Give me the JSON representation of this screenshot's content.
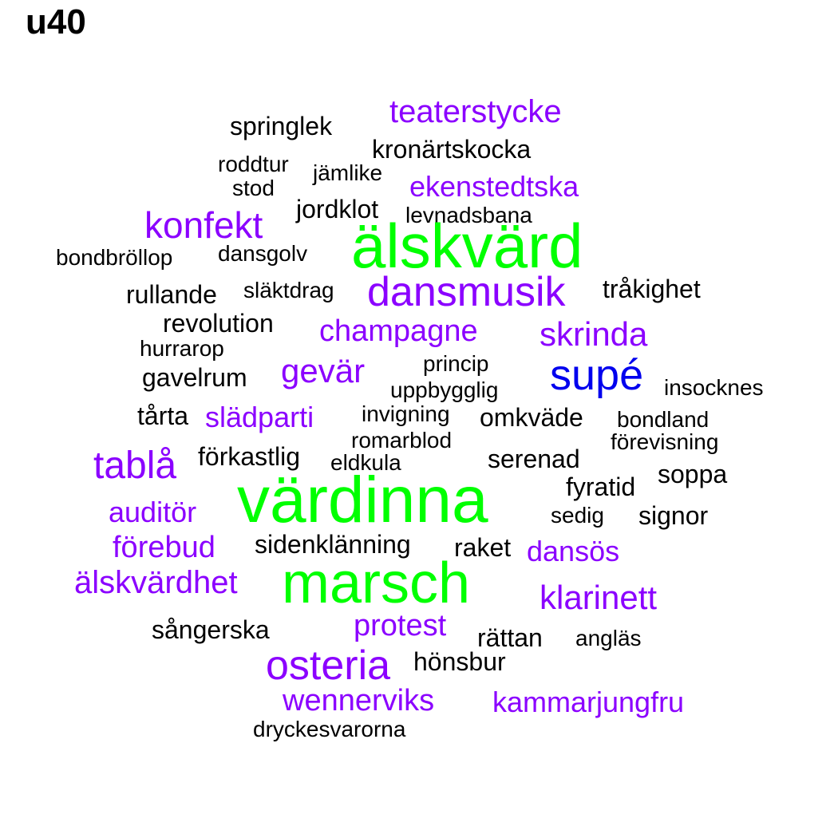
{
  "title": "u40",
  "colors": {
    "black": "#000000",
    "purple": "#8B00FF",
    "blue": "#0000EE",
    "green": "#00FF00"
  },
  "words": [
    {
      "text": "teaterstycke",
      "color": "purple"
    },
    {
      "text": "springlek",
      "color": "black"
    },
    {
      "text": "kronärtskocka",
      "color": "black"
    },
    {
      "text": "roddtur",
      "color": "black"
    },
    {
      "text": "jämlike",
      "color": "black"
    },
    {
      "text": "stod",
      "color": "black"
    },
    {
      "text": "ekenstedtska",
      "color": "purple"
    },
    {
      "text": "jordklot",
      "color": "black"
    },
    {
      "text": "levnadsbana",
      "color": "black"
    },
    {
      "text": "konfekt",
      "color": "purple"
    },
    {
      "text": "älskvärd",
      "color": "green"
    },
    {
      "text": "bondbröllop",
      "color": "black"
    },
    {
      "text": "dansgolv",
      "color": "black"
    },
    {
      "text": "rullande",
      "color": "black"
    },
    {
      "text": "släktdrag",
      "color": "black"
    },
    {
      "text": "dansmusik",
      "color": "purple"
    },
    {
      "text": "tråkighet",
      "color": "black"
    },
    {
      "text": "revolution",
      "color": "black"
    },
    {
      "text": "champagne",
      "color": "purple"
    },
    {
      "text": "skrinda",
      "color": "purple"
    },
    {
      "text": "hurrarop",
      "color": "black"
    },
    {
      "text": "princip",
      "color": "black"
    },
    {
      "text": "gavelrum",
      "color": "black"
    },
    {
      "text": "gevär",
      "color": "purple"
    },
    {
      "text": "supé",
      "color": "blue"
    },
    {
      "text": "uppbygglig",
      "color": "black"
    },
    {
      "text": "insocknes",
      "color": "black"
    },
    {
      "text": "tårta",
      "color": "black"
    },
    {
      "text": "slädparti",
      "color": "purple"
    },
    {
      "text": "invigning",
      "color": "black"
    },
    {
      "text": "omkväde",
      "color": "black"
    },
    {
      "text": "bondland",
      "color": "black"
    },
    {
      "text": "romarblod",
      "color": "black"
    },
    {
      "text": "förevisning",
      "color": "black"
    },
    {
      "text": "tablå",
      "color": "purple"
    },
    {
      "text": "förkastlig",
      "color": "black"
    },
    {
      "text": "eldkula",
      "color": "black"
    },
    {
      "text": "serenad",
      "color": "black"
    },
    {
      "text": "soppa",
      "color": "black"
    },
    {
      "text": "fyratid",
      "color": "black"
    },
    {
      "text": "värdinna",
      "color": "green"
    },
    {
      "text": "auditör",
      "color": "purple"
    },
    {
      "text": "sedig",
      "color": "black"
    },
    {
      "text": "signor",
      "color": "black"
    },
    {
      "text": "förebud",
      "color": "purple"
    },
    {
      "text": "sidenklänning",
      "color": "black"
    },
    {
      "text": "raket",
      "color": "black"
    },
    {
      "text": "dansös",
      "color": "purple"
    },
    {
      "text": "älskvärdhet",
      "color": "purple"
    },
    {
      "text": "marsch",
      "color": "green"
    },
    {
      "text": "klarinett",
      "color": "purple"
    },
    {
      "text": "sångerska",
      "color": "black"
    },
    {
      "text": "protest",
      "color": "purple"
    },
    {
      "text": "rättan",
      "color": "black"
    },
    {
      "text": "angläs",
      "color": "black"
    },
    {
      "text": "osteria",
      "color": "purple"
    },
    {
      "text": "hönsbur",
      "color": "black"
    },
    {
      "text": "wennerviks",
      "color": "purple"
    },
    {
      "text": "kammarjungfru",
      "color": "purple"
    },
    {
      "text": "dryckesvarorna",
      "color": "black"
    }
  ]
}
